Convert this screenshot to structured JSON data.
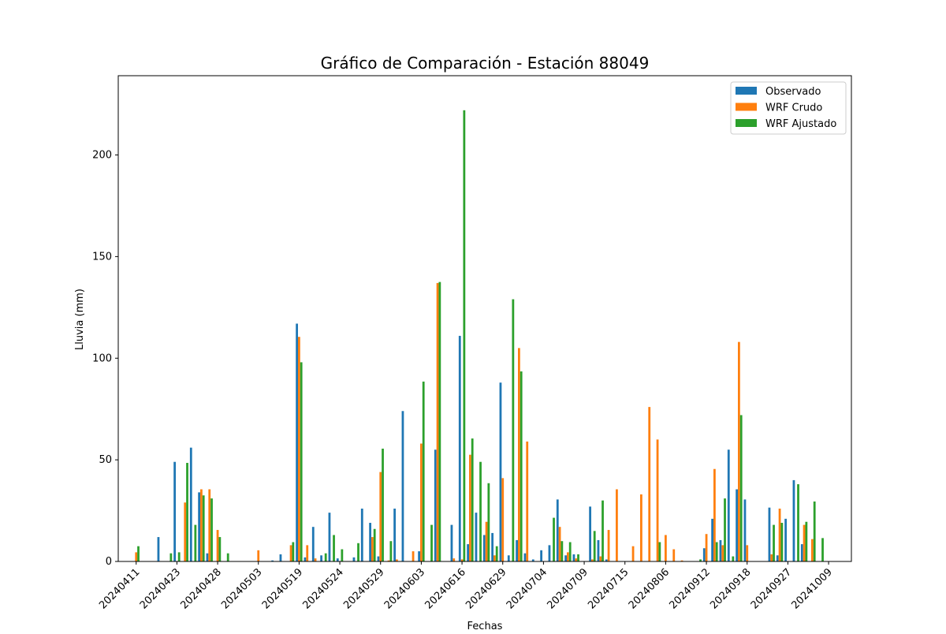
{
  "chart_data": {
    "type": "bar",
    "title": "Gráfico de Comparación - Estación 88049",
    "xlabel": "Fechas",
    "ylabel": "Lluvia (mm)",
    "ylim": [
      0,
      239
    ],
    "yticks": [
      0,
      50,
      100,
      150,
      200
    ],
    "categories": [
      "20240411",
      "20240412",
      "20240413",
      "20240414",
      "20240415",
      "20240423",
      "20240424",
      "20240425",
      "20240426",
      "20240427",
      "20240428",
      "20240429",
      "20240430",
      "20240501",
      "20240502",
      "20240503",
      "20240504",
      "20240505",
      "20240506",
      "20240507",
      "20240519",
      "20240520",
      "20240521",
      "20240522",
      "20240523",
      "20240524",
      "20240525",
      "20240526",
      "20240527",
      "20240528",
      "20240529",
      "20240530",
      "20240531",
      "20240601",
      "20240602",
      "20240603",
      "20240604",
      "20240605",
      "20240606",
      "20240607",
      "20240616",
      "20240617",
      "20240618",
      "20240619",
      "20240620",
      "20240629",
      "20240630",
      "20240701",
      "20240702",
      "20240703",
      "20240704",
      "20240705",
      "20240706",
      "20240707",
      "20240708",
      "20240709",
      "20240710",
      "20240711",
      "20240712",
      "20240713",
      "20240715",
      "20240716",
      "20240717",
      "20240718",
      "20240719",
      "20240806",
      "20240807",
      "20240808",
      "20240809",
      "20240810",
      "20240912",
      "20240913",
      "20240914",
      "20240915",
      "20240916",
      "20240918",
      "20240919",
      "20240920",
      "20240921",
      "20240922",
      "20240927",
      "20240928",
      "20240929",
      "20240930",
      "20241001",
      "20241009",
      "20241010"
    ],
    "tick_labels": [
      "20240411",
      "20240423",
      "20240428",
      "20240503",
      "20240519",
      "20240524",
      "20240529",
      "20240603",
      "20240616",
      "20240629",
      "20240704",
      "20240709",
      "20240715",
      "20240806",
      "20240912",
      "20240918",
      "20240927",
      "20241009"
    ],
    "series": [
      {
        "name": "Observado",
        "color": "#1f77b4",
        "values": [
          0,
          0,
          0,
          12,
          0,
          49,
          0,
          56,
          34,
          4,
          0,
          0,
          0,
          0,
          0,
          0,
          0,
          0.5,
          3.5,
          0,
          117,
          2,
          17,
          3,
          24,
          1.5,
          0,
          2,
          26,
          19,
          2.5,
          0,
          26,
          74,
          0,
          5,
          0,
          55,
          0,
          18,
          111,
          8.5,
          24,
          13,
          14,
          88,
          3,
          10.5,
          4,
          1,
          5.5,
          8,
          30.5,
          3,
          3.5,
          0,
          27,
          10.5,
          1,
          0,
          0,
          0,
          0,
          0,
          0,
          0,
          0,
          0,
          0,
          0,
          6.5,
          21,
          10.5,
          55,
          35.5,
          30.5,
          0,
          0,
          26.5,
          3,
          21,
          40,
          8.5,
          0,
          0,
          0,
          0
        ]
      },
      {
        "name": "WRF Crudo",
        "color": "#ff7f0e",
        "values": [
          4.5,
          0,
          0,
          0,
          0,
          0,
          29,
          0,
          35.5,
          35.5,
          15.5,
          0,
          0,
          0,
          0,
          5.5,
          0,
          0,
          0,
          8,
          110.5,
          8,
          1.5,
          0,
          0,
          0,
          0,
          0,
          0,
          12,
          44,
          0.5,
          1,
          0,
          5,
          58,
          0,
          137,
          0,
          1.5,
          1,
          52.5,
          0,
          19.5,
          3,
          41,
          0,
          105,
          59,
          0,
          0,
          0,
          17,
          4.5,
          1.5,
          0,
          1,
          2.5,
          15.5,
          35.5,
          0,
          7.5,
          33,
          76,
          60,
          13,
          6,
          0.5,
          0,
          0,
          13.5,
          45.5,
          8,
          0,
          108,
          8,
          0,
          0,
          3.5,
          26,
          0,
          0,
          18,
          11,
          0,
          0,
          0
        ]
      },
      {
        "name": "WRF Ajustado",
        "color": "#2ca02c",
        "values": [
          7.5,
          0,
          0,
          0,
          4,
          4.5,
          48.5,
          18,
          32.5,
          31,
          12,
          4,
          0,
          0,
          0,
          0,
          0,
          0,
          0,
          9.5,
          98,
          0,
          0,
          4,
          13,
          6,
          0,
          9,
          0,
          16,
          55.5,
          10,
          0,
          0,
          0,
          88.5,
          18,
          137.5,
          0,
          0,
          222,
          60.5,
          49,
          38.5,
          7.5,
          0,
          129,
          93.5,
          0,
          0,
          0,
          21.5,
          10,
          9.5,
          3.5,
          0,
          15,
          30,
          0,
          0,
          0,
          0,
          0,
          0,
          9.5,
          0,
          0,
          0,
          0,
          1,
          0,
          9.5,
          31,
          2.5,
          72,
          0,
          0,
          0,
          18,
          19,
          0,
          38,
          19.5,
          29.5,
          11.5,
          0,
          0
        ]
      }
    ],
    "legend": {
      "location": "upper right",
      "entries": [
        "Observado",
        "WRF Crudo",
        "WRF Ajustado"
      ]
    }
  }
}
